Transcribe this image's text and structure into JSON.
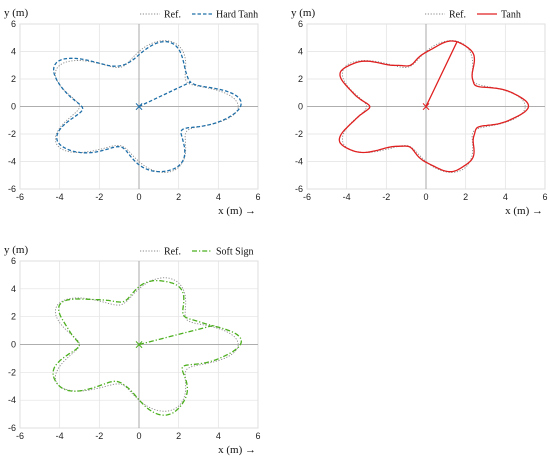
{
  "chart_data": [
    {
      "type": "line",
      "panel": "top-left",
      "ylabel": "y (m)",
      "xlabel": "x (m) →",
      "xlim": [
        -6,
        6
      ],
      "ylim": [
        -6,
        6
      ],
      "xticks": [
        -6,
        -4,
        -2,
        0,
        2,
        4,
        6
      ],
      "yticks": [
        -6,
        -4,
        -2,
        0,
        2,
        4,
        6
      ],
      "grid": true,
      "legend_position": "top-right",
      "reference_shape": {
        "base_radius": 4.0,
        "amplitude": 1.0,
        "petals": 5,
        "phase": 0.0
      },
      "series": [
        {
          "name": "Ref.",
          "style": "dotted",
          "color": "#888888"
        },
        {
          "name": "Hard Tanh",
          "style": "dashed",
          "color": "#1f6fa8"
        }
      ],
      "start_marker": {
        "x": 0,
        "y": 0,
        "symbol": "×"
      }
    },
    {
      "type": "line",
      "panel": "top-right",
      "ylabel": "y (m)",
      "xlabel": "x (m) →",
      "xlim": [
        -6,
        6
      ],
      "ylim": [
        -6,
        6
      ],
      "xticks": [
        -6,
        -4,
        -2,
        0,
        2,
        4,
        6
      ],
      "yticks": [
        -6,
        -4,
        -2,
        0,
        2,
        4,
        6
      ],
      "grid": true,
      "legend_position": "top-right",
      "reference_shape": {
        "base_radius": 4.0,
        "amplitude": 1.0,
        "petals": 5,
        "phase": 0.0
      },
      "series": [
        {
          "name": "Ref.",
          "style": "dotted",
          "color": "#888888"
        },
        {
          "name": "Tanh",
          "style": "solid",
          "color": "#e02020"
        }
      ],
      "start_marker": {
        "x": 0,
        "y": 0,
        "symbol": "×"
      }
    },
    {
      "type": "line",
      "panel": "bottom-left",
      "ylabel": "y (m)",
      "xlabel": "x (m) →",
      "xlim": [
        -6,
        6
      ],
      "ylim": [
        -6,
        6
      ],
      "xticks": [
        -6,
        -4,
        -2,
        0,
        2,
        4,
        6
      ],
      "yticks": [
        -6,
        -4,
        -2,
        0,
        2,
        4,
        6
      ],
      "grid": true,
      "legend_position": "top-right",
      "reference_shape": {
        "base_radius": 4.0,
        "amplitude": 1.0,
        "petals": 5,
        "phase": 0.0
      },
      "series": [
        {
          "name": "Ref.",
          "style": "dotted",
          "color": "#888888"
        },
        {
          "name": "Soft Sign",
          "style": "dash-dot",
          "color": "#4caf1e"
        }
      ],
      "start_marker": {
        "x": 0,
        "y": 0,
        "symbol": "×"
      }
    }
  ]
}
